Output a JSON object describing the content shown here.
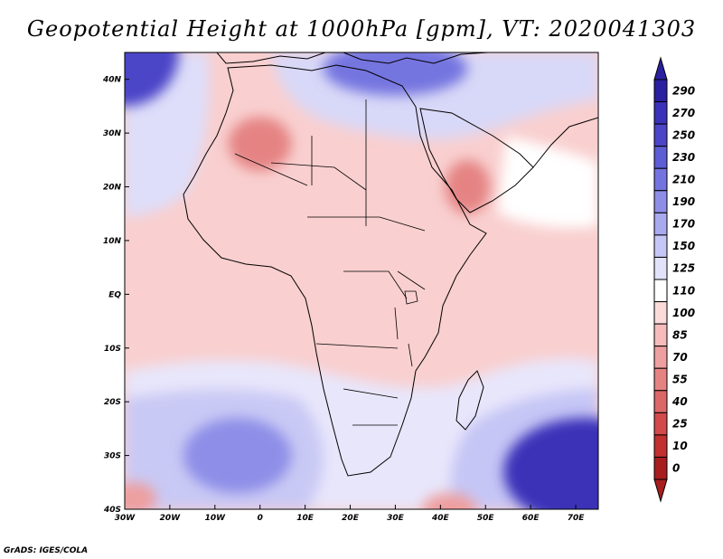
{
  "title": "Geopotential Height at 1000hPa [gpm], VT: 2020041303",
  "credit": "GrADS: IGES/COLA",
  "map": {
    "lon_range": [
      -30,
      75
    ],
    "lat_range": [
      -40,
      45
    ],
    "x_ticks": [
      {
        "lon": -30,
        "label": "30W"
      },
      {
        "lon": -20,
        "label": "20W"
      },
      {
        "lon": -10,
        "label": "10W"
      },
      {
        "lon": 0,
        "label": "0"
      },
      {
        "lon": 10,
        "label": "10E"
      },
      {
        "lon": 20,
        "label": "20E"
      },
      {
        "lon": 30,
        "label": "30E"
      },
      {
        "lon": 40,
        "label": "40E"
      },
      {
        "lon": 50,
        "label": "50E"
      },
      {
        "lon": 60,
        "label": "60E"
      },
      {
        "lon": 70,
        "label": "70E"
      }
    ],
    "y_ticks": [
      {
        "lat": 40,
        "label": "40N"
      },
      {
        "lat": 30,
        "label": "30N"
      },
      {
        "lat": 20,
        "label": "20N"
      },
      {
        "lat": 10,
        "label": "10N"
      },
      {
        "lat": 0,
        "label": "EQ"
      },
      {
        "lat": -10,
        "label": "10S"
      },
      {
        "lat": -20,
        "label": "20S"
      },
      {
        "lat": -30,
        "label": "30S"
      },
      {
        "lat": -40,
        "label": "40S"
      }
    ],
    "features": [
      {
        "name": "high-pressure-nw-atlantic",
        "lon": -30,
        "lat": 45,
        "rx": 12,
        "ry": 10,
        "value": 250
      },
      {
        "name": "high-pressure-south-atlantic",
        "lon": -5,
        "lat": -30,
        "rx": 12,
        "ry": 7,
        "value": 190
      },
      {
        "name": "high-pressure-south-indian",
        "lon": 72,
        "lat": -33,
        "rx": 18,
        "ry": 10,
        "value": 270
      },
      {
        "name": "high-pressure-mediterranean",
        "lon": 30,
        "lat": 42,
        "rx": 16,
        "ry": 5,
        "value": 210
      },
      {
        "name": "low-pressure-sahara",
        "lon": 0,
        "lat": 28,
        "rx": 7,
        "ry": 5,
        "value": 55
      },
      {
        "name": "low-pressure-arabia",
        "lon": 46,
        "lat": 20,
        "rx": 5,
        "ry": 5,
        "value": 55
      },
      {
        "name": "low-pressure-sw-corner",
        "lon": -28,
        "lat": -38,
        "rx": 5,
        "ry": 3,
        "value": 70
      },
      {
        "name": "low-pressure-south-coast",
        "lon": 42,
        "lat": -40,
        "rx": 6,
        "ry": 3,
        "value": 70
      }
    ]
  },
  "colorbar": {
    "levels": [
      "290",
      "270",
      "250",
      "230",
      "210",
      "190",
      "170",
      "150",
      "125",
      "110",
      "100",
      "85",
      "70",
      "55",
      "40",
      "25",
      "10",
      "0"
    ],
    "colors": [
      "#2b20a0",
      "#3a32b8",
      "#4b45c8",
      "#5d5dd6",
      "#7474e0",
      "#8e8ee8",
      "#a9a9f0",
      "#c6c6f6",
      "#e2e2fb",
      "#ffffff",
      "#fbdada",
      "#f6bcbc",
      "#ee9f9f",
      "#e58383",
      "#dc6767",
      "#d34a4a",
      "#c23030",
      "#a81e1e"
    ]
  }
}
